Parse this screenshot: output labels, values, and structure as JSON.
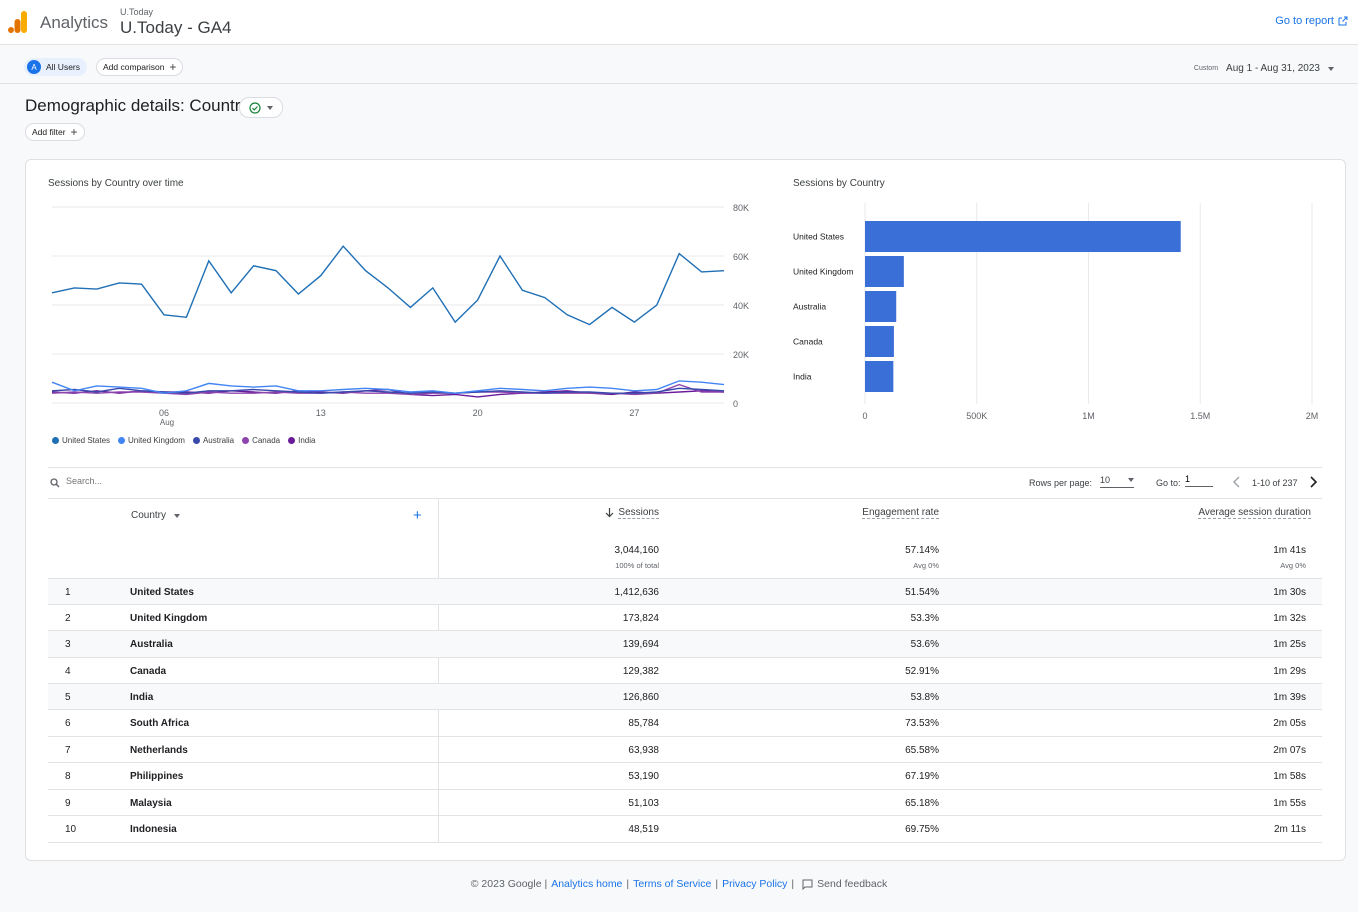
{
  "header": {
    "app_name": "Analytics",
    "account_small": "U.Today",
    "property_name": "U.Today - GA4",
    "go_to_report": "Go to report"
  },
  "comparisons": {
    "avatar_letter": "A",
    "all_users": "All Users",
    "add_comparison": "Add comparison"
  },
  "date": {
    "custom_label": "Custom",
    "range": "Aug 1 - Aug 31, 2023"
  },
  "page": {
    "title": "Demographic details: Country",
    "add_filter": "Add filter"
  },
  "line_chart": {
    "title": "Sessions by Country over time",
    "y_ticks": [
      "80K",
      "60K",
      "40K",
      "20K",
      "0"
    ],
    "x_ticks": [
      "06",
      "13",
      "20",
      "27"
    ],
    "x_sub": "Aug",
    "legend": [
      {
        "name": "United States",
        "color": "#1f6fb5"
      },
      {
        "name": "United Kingdom",
        "color": "#4285f4"
      },
      {
        "name": "Australia",
        "color": "#3949ab"
      },
      {
        "name": "Canada",
        "color": "#8e44ad"
      },
      {
        "name": "India",
        "color": "#6a1b9a"
      }
    ]
  },
  "bar_chart": {
    "title": "Sessions by Country",
    "x_ticks": [
      "0",
      "500K",
      "1M",
      "1.5M",
      "2M"
    ]
  },
  "chart_data": [
    {
      "type": "line",
      "title": "Sessions by Country over time",
      "x": [
        1,
        2,
        3,
        4,
        5,
        6,
        7,
        8,
        9,
        10,
        11,
        12,
        13,
        14,
        15,
        16,
        17,
        18,
        19,
        20,
        21,
        22,
        23,
        24,
        25,
        26,
        27,
        28,
        29,
        30,
        31
      ],
      "x_tick_labels": [
        "06 Aug",
        "13",
        "20",
        "27"
      ],
      "ylim": [
        0,
        80000
      ],
      "series": [
        {
          "name": "United States",
          "values": [
            45000,
            47000,
            46500,
            49000,
            48500,
            36000,
            35000,
            58000,
            45000,
            56000,
            54000,
            44500,
            52000,
            64000,
            54000,
            47000,
            39000,
            47000,
            33000,
            42000,
            60000,
            46000,
            43000,
            36000,
            32000,
            39000,
            33000,
            40000,
            61000,
            53500,
            54000
          ]
        },
        {
          "name": "United Kingdom",
          "values": [
            8500,
            5000,
            7000,
            6500,
            6000,
            4000,
            5000,
            8000,
            7000,
            6500,
            7000,
            5000,
            5000,
            5500,
            6000,
            5500,
            4500,
            5000,
            4000,
            5000,
            6000,
            5500,
            5000,
            6000,
            6500,
            6000,
            5000,
            5500,
            9000,
            8500,
            7500
          ]
        },
        {
          "name": "Australia",
          "values": [
            5000,
            5500,
            4500,
            6000,
            5000,
            4500,
            4000,
            5000,
            5000,
            5500,
            5000,
            4500,
            4000,
            4500,
            5000,
            4500,
            4000,
            4500,
            4000,
            4500,
            5000,
            4500,
            4000,
            4500,
            4500,
            4000,
            4000,
            4500,
            6000,
            5500,
            5000
          ]
        },
        {
          "name": "Canada",
          "values": [
            4000,
            4500,
            4000,
            4500,
            4500,
            4000,
            3500,
            4500,
            4000,
            4000,
            4500,
            4000,
            4000,
            4500,
            4000,
            4000,
            3500,
            4000,
            4000,
            4500,
            4500,
            4000,
            4000,
            4000,
            4000,
            4000,
            3500,
            4000,
            7500,
            4500,
            4500
          ]
        },
        {
          "name": "India",
          "values": [
            4500,
            4000,
            5000,
            4000,
            5000,
            4500,
            4500,
            4000,
            5000,
            4500,
            4000,
            5000,
            4500,
            4000,
            5000,
            5500,
            3500,
            3000,
            3500,
            2500,
            3500,
            4000,
            4500,
            5000,
            4000,
            3500,
            4500,
            4000,
            4500,
            5000,
            4500
          ]
        }
      ]
    },
    {
      "type": "bar",
      "title": "Sessions by Country",
      "orientation": "horizontal",
      "categories": [
        "United States",
        "United Kingdom",
        "Australia",
        "Canada",
        "India"
      ],
      "values": [
        1412636,
        173824,
        139694,
        129382,
        126860
      ],
      "xlim": [
        0,
        2000000
      ],
      "x_tick_labels": [
        "0",
        "500K",
        "1M",
        "1.5M",
        "2M"
      ]
    }
  ],
  "table": {
    "search_placeholder": "Search...",
    "rows_per_page_label": "Rows per page:",
    "rows_per_page": "10",
    "goto_label": "Go to:",
    "goto_value": "1",
    "pager_text": "1-10 of 237",
    "columns": {
      "dimension": "Country",
      "sessions": "Sessions",
      "engagement": "Engagement rate",
      "duration": "Average session duration"
    },
    "totals": {
      "sessions": "3,044,160",
      "sessions_sub": "100% of total",
      "engagement": "57.14%",
      "engagement_sub": "Avg 0%",
      "duration": "1m 41s",
      "duration_sub": "Avg 0%"
    },
    "rows": [
      {
        "idx": "1",
        "country": "United States",
        "sessions": "1,412,636",
        "engagement": "51.54%",
        "duration": "1m 30s"
      },
      {
        "idx": "2",
        "country": "United Kingdom",
        "sessions": "173,824",
        "engagement": "53.3%",
        "duration": "1m 32s"
      },
      {
        "idx": "3",
        "country": "Australia",
        "sessions": "139,694",
        "engagement": "53.6%",
        "duration": "1m 25s"
      },
      {
        "idx": "4",
        "country": "Canada",
        "sessions": "129,382",
        "engagement": "52.91%",
        "duration": "1m 29s"
      },
      {
        "idx": "5",
        "country": "India",
        "sessions": "126,860",
        "engagement": "53.8%",
        "duration": "1m 39s"
      },
      {
        "idx": "6",
        "country": "South Africa",
        "sessions": "85,784",
        "engagement": "73.53%",
        "duration": "2m 05s"
      },
      {
        "idx": "7",
        "country": "Netherlands",
        "sessions": "63,938",
        "engagement": "65.58%",
        "duration": "2m 07s"
      },
      {
        "idx": "8",
        "country": "Philippines",
        "sessions": "53,190",
        "engagement": "67.19%",
        "duration": "1m 58s"
      },
      {
        "idx": "9",
        "country": "Malaysia",
        "sessions": "51,103",
        "engagement": "65.18%",
        "duration": "1m 55s"
      },
      {
        "idx": "10",
        "country": "Indonesia",
        "sessions": "48,519",
        "engagement": "69.75%",
        "duration": "2m 11s"
      }
    ]
  },
  "footer": {
    "copyright": "© 2023 Google |",
    "analytics_home": "Analytics home",
    "terms": "Terms of Service",
    "privacy": "Privacy Policy",
    "feedback": "Send feedback"
  },
  "colors": {
    "accent": "#1a73e8",
    "bar": "#3b6fd8"
  }
}
